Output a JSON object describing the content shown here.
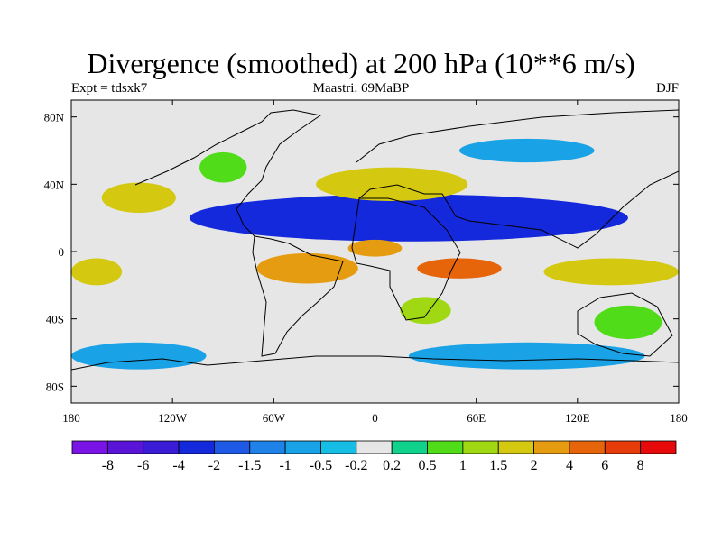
{
  "title": "Divergence (smoothed) at 200 hPa (10**6 m/s)",
  "left_string": "Expt = tdsxk7",
  "center_string": "Maastri.  69MaBP",
  "right_string": "DJF",
  "chart_data": {
    "type": "heatmap",
    "title": "Divergence (smoothed) at 200 hPa (10**6 m/s)",
    "x_range": [
      -180,
      180
    ],
    "y_range": [
      -90,
      90
    ],
    "x_ticks": [
      {
        "value": -180,
        "label": "180"
      },
      {
        "value": -120,
        "label": "120W"
      },
      {
        "value": -60,
        "label": "60W"
      },
      {
        "value": 0,
        "label": "0"
      },
      {
        "value": 60,
        "label": "60E"
      },
      {
        "value": 120,
        "label": "120E"
      },
      {
        "value": 180,
        "label": "180"
      }
    ],
    "y_ticks": [
      {
        "value": 80,
        "label": "80N"
      },
      {
        "value": 40,
        "label": "40N"
      },
      {
        "value": 0,
        "label": "0"
      },
      {
        "value": -40,
        "label": "40S"
      },
      {
        "value": -80,
        "label": "80S"
      }
    ],
    "colorbar": {
      "labels": [
        "-8",
        "-6",
        "-4",
        "-2",
        "-1.5",
        "-1",
        "-0.5",
        "-0.2",
        "0.2",
        "0.5",
        "1",
        "1.5",
        "2",
        "4",
        "6",
        "8"
      ],
      "thresholds": [
        -8,
        -6,
        -4,
        -2,
        -1.5,
        -1,
        -0.5,
        -0.2,
        0.2,
        0.5,
        1,
        1.5,
        2,
        4,
        6,
        8
      ],
      "colors": [
        "#7a14e6",
        "#5a14d8",
        "#3a1cd6",
        "#1428dc",
        "#1e5ae6",
        "#1e82e8",
        "#1aa2e6",
        "#16bee6",
        "#e6e6e6",
        "#10d28c",
        "#50dc18",
        "#a0d814",
        "#d4c810",
        "#e69c10",
        "#e6640a",
        "#e63c0a",
        "#e60a0a"
      ]
    },
    "regions": [
      {
        "lon": 20,
        "lat": 20,
        "rlon": 130,
        "rlat": 14,
        "value": -3
      },
      {
        "lon": 40,
        "lat": 22,
        "rlon": 55,
        "rlat": 8,
        "value": -3
      },
      {
        "lon": -20,
        "lat": 22,
        "rlon": 45,
        "rlat": 6,
        "value": -3
      },
      {
        "lon": 10,
        "lat": 40,
        "rlon": 45,
        "rlat": 10,
        "value": 1.7
      },
      {
        "lon": -140,
        "lat": 32,
        "rlon": 22,
        "rlat": 9,
        "value": 1.7
      },
      {
        "lon": -40,
        "lat": -10,
        "rlon": 30,
        "rlat": 9,
        "value": 2.5
      },
      {
        "lon": 50,
        "lat": -10,
        "rlon": 25,
        "rlat": 6,
        "value": 4.5
      },
      {
        "lon": 140,
        "lat": -12,
        "rlon": 40,
        "rlat": 8,
        "value": 1.7
      },
      {
        "lon": 0,
        "lat": 2,
        "rlon": 16,
        "rlat": 5,
        "value": 2.5
      },
      {
        "lon": -165,
        "lat": -12,
        "rlon": 15,
        "rlat": 8,
        "value": 1.7
      },
      {
        "lon": -90,
        "lat": 50,
        "rlon": 14,
        "rlat": 9,
        "value": 0.7
      },
      {
        "lon": 90,
        "lat": 60,
        "rlon": 40,
        "rlat": 7,
        "value": -0.7
      },
      {
        "lon": -140,
        "lat": -62,
        "rlon": 40,
        "rlat": 8,
        "value": -0.7
      },
      {
        "lon": 90,
        "lat": -62,
        "rlon": 70,
        "rlat": 8,
        "value": -0.7
      },
      {
        "lon": 150,
        "lat": -42,
        "rlon": 20,
        "rlat": 10,
        "value": 0.7
      },
      {
        "lon": 30,
        "lat": -35,
        "rlon": 15,
        "rlat": 8,
        "value": 1.2
      }
    ]
  }
}
